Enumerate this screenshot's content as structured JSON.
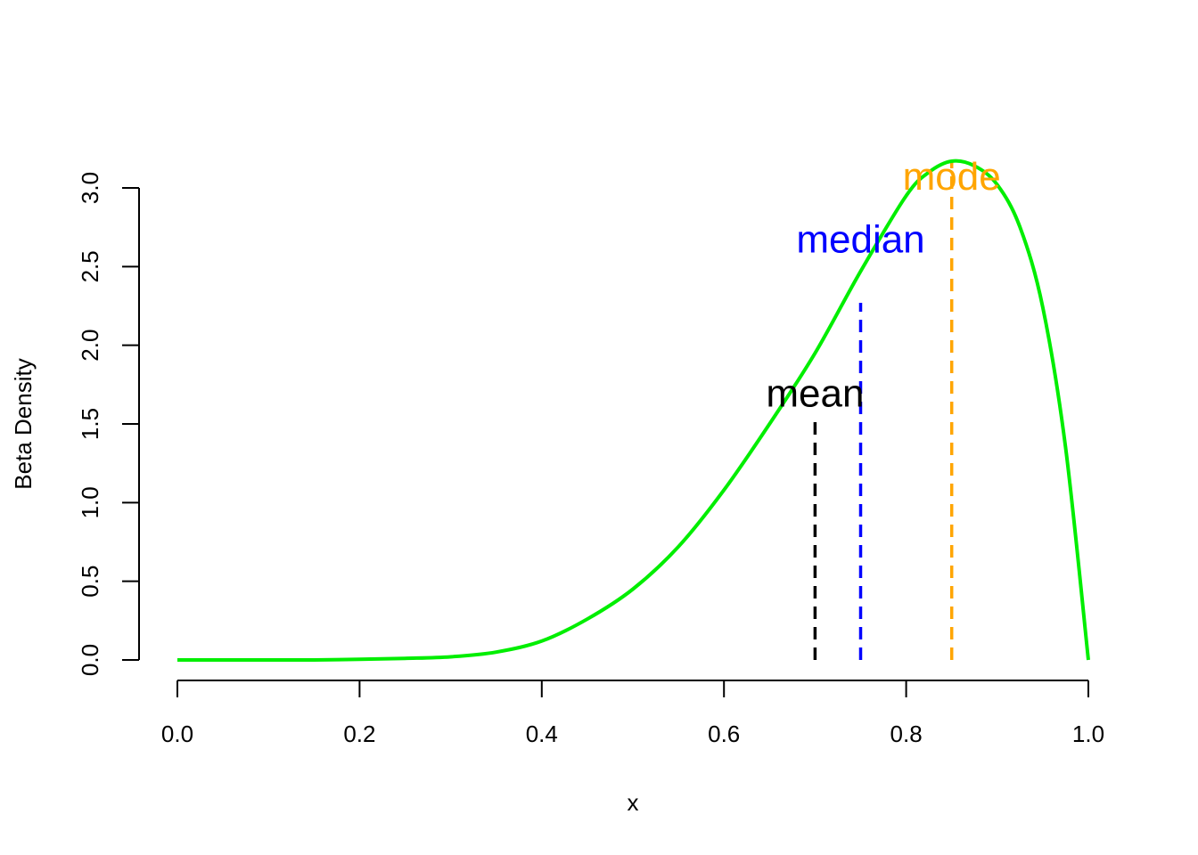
{
  "chart_data": {
    "type": "line",
    "title": "",
    "xlabel": "x",
    "ylabel": "Beta Density",
    "xlim": [
      0,
      1
    ],
    "ylim": [
      0,
      3.0
    ],
    "x_ticks": [
      0,
      0.2,
      0.4,
      0.6,
      0.8,
      1.0
    ],
    "x_tick_labels": [
      "0.0",
      "0.2",
      "0.4",
      "0.6",
      "0.8",
      "1.0"
    ],
    "y_ticks": [
      0,
      0.5,
      1.0,
      1.5,
      2.0,
      2.5,
      3.0
    ],
    "y_tick_labels": [
      "0.0",
      "0.5",
      "1.0",
      "1.5",
      "2.0",
      "2.5",
      "3.0"
    ],
    "grid": false,
    "series": [
      {
        "color": "#00ee00",
        "x": [
          0.0,
          0.05,
          0.1,
          0.15,
          0.2,
          0.25,
          0.3,
          0.35,
          0.4,
          0.45,
          0.5,
          0.55,
          0.6,
          0.65,
          0.7,
          0.75,
          0.8,
          0.825,
          0.85,
          0.875,
          0.9,
          0.925,
          0.95,
          0.975,
          1.0
        ],
        "y": [
          0.0,
          0.0,
          0.0,
          0.0,
          0.004,
          0.01,
          0.02,
          0.05,
          0.12,
          0.26,
          0.45,
          0.72,
          1.08,
          1.5,
          1.95,
          2.47,
          2.95,
          3.1,
          3.17,
          3.14,
          3.02,
          2.75,
          2.24,
          1.35,
          0.0
        ]
      }
    ],
    "vlines": [
      {
        "label": "mean",
        "x": 0.7,
        "ymax": 1.55,
        "color": "#000000",
        "label_y": 1.7
      },
      {
        "label": "median",
        "x": 0.75,
        "ymax": 2.27,
        "color": "#0000ff",
        "label_y": 2.68
      },
      {
        "label": "mode",
        "x": 0.85,
        "ymax": 3.17,
        "color": "#ffa500",
        "label_y": 3.08
      }
    ]
  }
}
